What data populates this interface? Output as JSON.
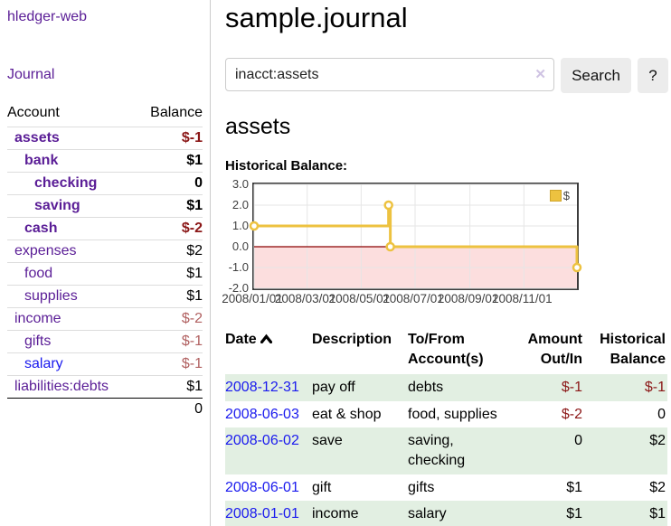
{
  "app": {
    "title": "hledger-web"
  },
  "sidebar": {
    "journal_label": "Journal",
    "accounts_headers": {
      "account": "Account",
      "balance": "Balance"
    },
    "accounts": [
      {
        "name": "assets",
        "balance": "$-1"
      },
      {
        "name": "bank",
        "balance": "$1"
      },
      {
        "name": "checking",
        "balance": "0"
      },
      {
        "name": "saving",
        "balance": "$1"
      },
      {
        "name": "cash",
        "balance": "$-2"
      },
      {
        "name": "expenses",
        "balance": "$2"
      },
      {
        "name": "food",
        "balance": "$1"
      },
      {
        "name": "supplies",
        "balance": "$1"
      },
      {
        "name": "income",
        "balance": "$-2"
      },
      {
        "name": "gifts",
        "balance": "$-1"
      },
      {
        "name": "salary",
        "balance": "$-1"
      },
      {
        "name": "liabilities:debts",
        "balance": "$1"
      }
    ],
    "accounts_total": "0"
  },
  "main": {
    "page_title": "sample.journal",
    "search": {
      "value": "inacct:assets",
      "clear_icon": "✕",
      "button_label": "Search",
      "help_label": "?"
    },
    "account_heading": "assets",
    "chart_heading": "Historical Balance:"
  },
  "chart_data": {
    "type": "line",
    "title": "Historical Balance:",
    "series": [
      {
        "name": "$",
        "color": "#edc240",
        "step": true,
        "points": [
          [
            "2008-01-01",
            1.0
          ],
          [
            "2008-06-01",
            2.0
          ],
          [
            "2008-06-03",
            0.0
          ],
          [
            "2008-12-31",
            -1.0
          ]
        ]
      }
    ],
    "x_range": [
      "2008-01-01",
      "2008-12-31"
    ],
    "x_ticks": [
      "2008/01/01",
      "2008/03/01",
      "2008/05/01",
      "2008/07/01",
      "2008/09/01",
      "2008/11/01"
    ],
    "y_ticks": [
      3.0,
      2.0,
      1.0,
      0.0,
      -1.0,
      -2.0
    ],
    "ylim": [
      -2.0,
      3.0
    ],
    "grid": true,
    "grid_color": "#e6e6e6",
    "zero_line_color": "#8b0000",
    "negative_region_color": "#fcdede",
    "legend": {
      "label": "$",
      "position": "top-right"
    }
  },
  "transactions": {
    "headers": {
      "date": "Date",
      "description": "Description",
      "accounts": "To/From Account(s)",
      "amount": "Amount Out/In",
      "balance": "Historical Balance"
    },
    "rows": [
      {
        "date": "2008-12-31",
        "description": "pay off",
        "accounts": "debts",
        "amount": "$-1",
        "balance": "$-1"
      },
      {
        "date": "2008-06-03",
        "description": "eat & shop",
        "accounts": "food, supplies",
        "amount": "$-2",
        "balance": "0"
      },
      {
        "date": "2008-06-02",
        "description": "save",
        "accounts": "saving, checking",
        "amount": "0",
        "balance": "$2"
      },
      {
        "date": "2008-06-01",
        "description": "gift",
        "accounts": "gifts",
        "amount": "$1",
        "balance": "$2"
      },
      {
        "date": "2008-01-01",
        "description": "income",
        "accounts": "salary",
        "amount": "$1",
        "balance": "$1"
      }
    ]
  }
}
